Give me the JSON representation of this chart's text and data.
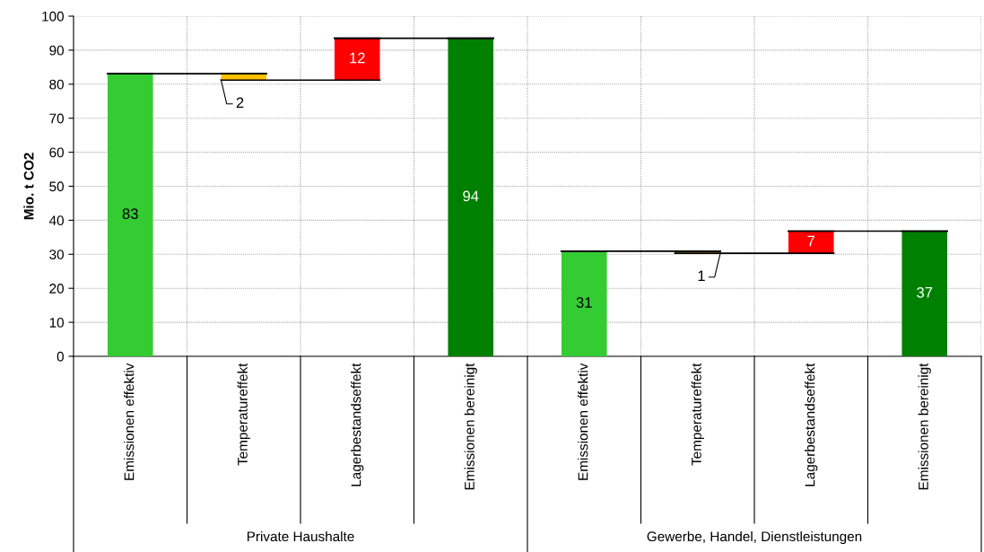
{
  "chart_data": {
    "type": "bar",
    "ylabel": "Mio. t CO2",
    "categories": [
      "Emissionen effektiv",
      "Temperatureffekt",
      "Lagerbestandseffekt",
      "Emissionen bereinigt",
      "Emissionen effektiv",
      "Temperatureffekt",
      "Lagerbestandseffekt",
      "Emissionen bereinigt"
    ],
    "values": [
      83.1,
      1.9,
      12.3,
      93.5,
      30.9,
      0.6,
      6.5,
      36.8
    ],
    "base": [
      0,
      81.2,
      81.2,
      0,
      0,
      30.3,
      30.3,
      0
    ],
    "colors": [
      "#33cc33",
      "#ffc000",
      "#ff0000",
      "#008000",
      "#33cc33",
      "#ffc000",
      "#ff0000",
      "#008000"
    ],
    "value_labels": [
      "83",
      "2",
      "12",
      "94",
      "31",
      "1",
      "7",
      "37"
    ],
    "ylim": [
      0,
      100
    ],
    "yticks": [
      0,
      10,
      20,
      30,
      40,
      50,
      60,
      70,
      80,
      90,
      100
    ],
    "grid": true,
    "annotations": [
      "Private Haushalte",
      "Gewerbe, Handel, Dienstleistungen"
    ]
  }
}
